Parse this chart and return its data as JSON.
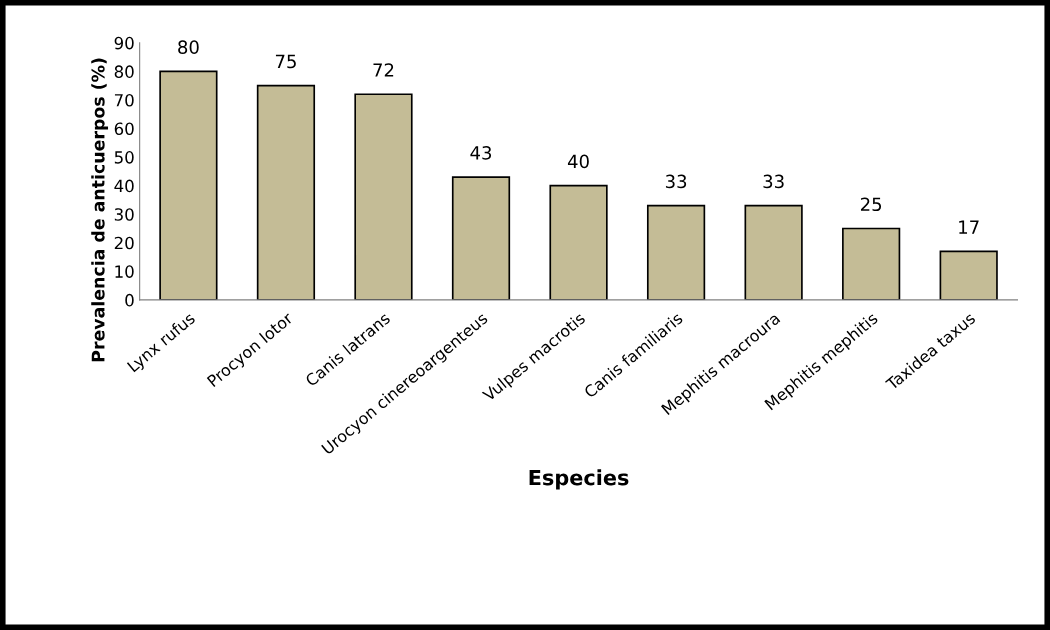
{
  "chart_data": {
    "type": "bar",
    "xlabel": "Especies",
    "ylabel": "Prevalencia de anticuerpos (%)",
    "categories": [
      "Lynx rufus",
      "Procyon lotor",
      "Canis latrans",
      "Urocyon cinereoargenteus",
      "Vulpes macrotis",
      "Canis familiaris",
      "Mephitis macroura",
      "Mephitis mephitis",
      "Taxidea taxus"
    ],
    "values": [
      80,
      75,
      72,
      43,
      40,
      33,
      33,
      25,
      17
    ],
    "color": "#c4bc96",
    "ylim": [
      0,
      90
    ],
    "yticks": [
      0,
      10,
      20,
      30,
      40,
      50,
      60,
      70,
      80,
      90
    ],
    "data_labels": true,
    "grid": false,
    "legend": false
  }
}
